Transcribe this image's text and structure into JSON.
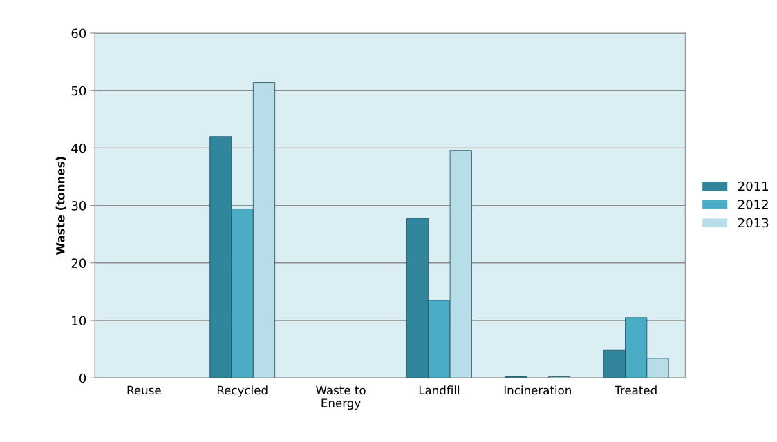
{
  "chart_data": {
    "type": "bar",
    "ylabel": "Waste (tonnes)",
    "categories": [
      "Reuse",
      "Recycled",
      "Waste to\nEnergy",
      "Landfill",
      "Incineration",
      "Treated"
    ],
    "series": [
      {
        "name": "2011",
        "color": "#31859c",
        "values": [
          0,
          42,
          0,
          27.8,
          0.2,
          4.8
        ]
      },
      {
        "name": "2012",
        "color": "#4bacc6",
        "values": [
          0,
          29.4,
          0,
          13.5,
          0,
          10.5
        ]
      },
      {
        "name": "2013",
        "color": "#b7dee8",
        "values": [
          0,
          51.4,
          0,
          39.6,
          0.2,
          3.4
        ]
      }
    ],
    "ylim": [
      0,
      60
    ],
    "yticks": [
      0,
      10,
      20,
      30,
      40,
      50,
      60
    ],
    "grid": "y",
    "legend": "right"
  }
}
